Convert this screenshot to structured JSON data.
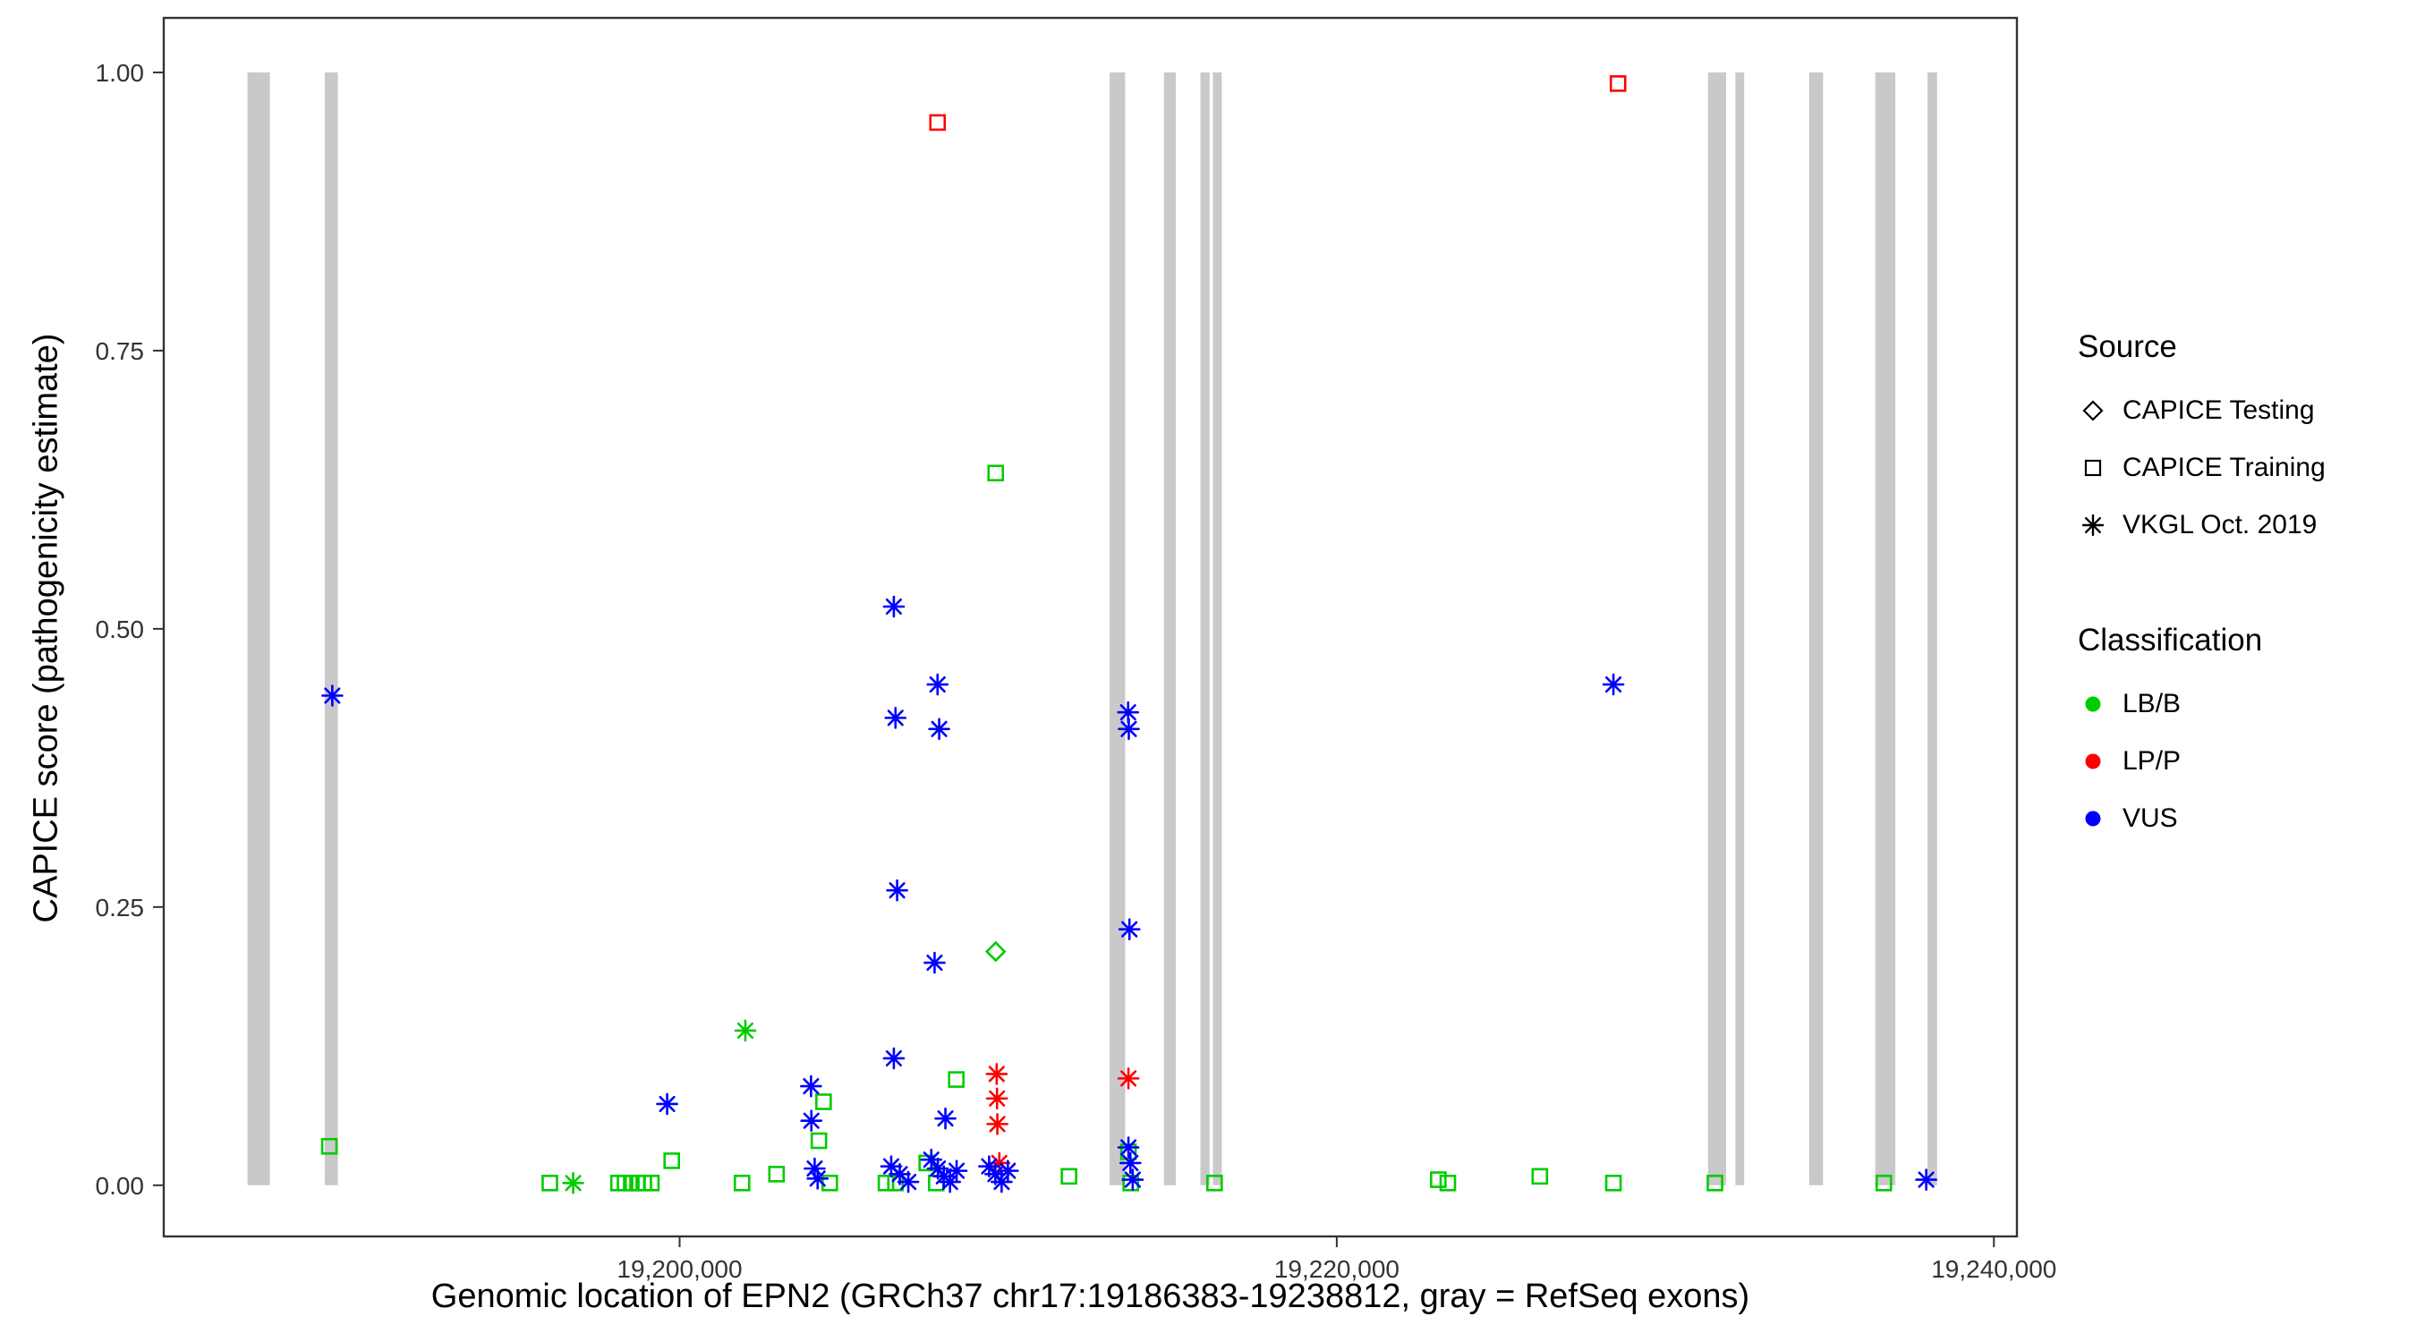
{
  "figure": {
    "xlabel": "Genomic location of EPN2 (GRCh37 chr17:19186383-19238812, gray = RefSeq exons)",
    "ylabel": "CAPICE score (pathogenicity estimate)"
  },
  "legend": {
    "source": {
      "title": "Source",
      "items": [
        {
          "label": "CAPICE Testing",
          "marker": "diamond"
        },
        {
          "label": "CAPICE Training",
          "marker": "square"
        },
        {
          "label": "VKGL Oct. 2019",
          "marker": "asterisk"
        }
      ]
    },
    "classification": {
      "title": "Classification",
      "items": [
        {
          "label": "LB/B",
          "color": "#00CC00"
        },
        {
          "label": "LP/P",
          "color": "#FF0000"
        },
        {
          "label": "VUS",
          "color": "#0000FF"
        }
      ]
    }
  },
  "chart_data": {
    "type": "scatter",
    "title": "",
    "xlabel": "Genomic location of EPN2 (GRCh37 chr17:19186383-19238812, gray = RefSeq exons)",
    "ylabel": "CAPICE score (pathogenicity estimate)",
    "xlim": [
      19184300,
      19240700
    ],
    "ylim": [
      -0.046,
      1.049
    ],
    "grid": false,
    "legend_position": "right",
    "x_ticks": [
      {
        "value": 19200000,
        "label": "19,200,000"
      },
      {
        "value": 19220000,
        "label": "19,220,000"
      },
      {
        "value": 19240000,
        "label": "19,240,000"
      }
    ],
    "y_ticks": [
      {
        "value": 0.0,
        "label": "0.00"
      },
      {
        "value": 0.25,
        "label": "0.25"
      },
      {
        "value": 0.5,
        "label": "0.50"
      },
      {
        "value": 0.75,
        "label": "0.75"
      },
      {
        "value": 1.0,
        "label": "1.00"
      }
    ],
    "exon_color": "#C9C9C9",
    "exons": [
      [
        19186850,
        19187530
      ],
      [
        19189200,
        19189600
      ],
      [
        19213090,
        19213560
      ],
      [
        19214740,
        19215100
      ],
      [
        19215850,
        19216130
      ],
      [
        19216230,
        19216500
      ],
      [
        19231300,
        19231850
      ],
      [
        19232130,
        19232400
      ],
      [
        19234380,
        19234800
      ],
      [
        19236390,
        19237000
      ],
      [
        19237980,
        19238270
      ]
    ],
    "series": [
      {
        "name": "CAPICE Training / LB/B",
        "source": "CAPICE Training",
        "classification": "LB/B",
        "marker": "square",
        "color": "#00CC00",
        "points": [
          [
            19189340,
            0.035
          ],
          [
            19196050,
            0.002
          ],
          [
            19198140,
            0.002
          ],
          [
            19198340,
            0.002
          ],
          [
            19198530,
            0.002
          ],
          [
            19198720,
            0.002
          ],
          [
            19198910,
            0.002
          ],
          [
            19199140,
            0.002
          ],
          [
            19199760,
            0.022
          ],
          [
            19201900,
            0.002
          ],
          [
            19202950,
            0.01
          ],
          [
            19204240,
            0.04
          ],
          [
            19204380,
            0.075
          ],
          [
            19204570,
            0.002
          ],
          [
            19206280,
            0.002
          ],
          [
            19206570,
            0.002
          ],
          [
            19207520,
            0.02
          ],
          [
            19207810,
            0.002
          ],
          [
            19208420,
            0.095
          ],
          [
            19209620,
            0.64
          ],
          [
            19211850,
            0.008
          ],
          [
            19213660,
            0.03
          ],
          [
            19213730,
            0.002
          ],
          [
            19216280,
            0.002
          ],
          [
            19223090,
            0.005
          ],
          [
            19223380,
            0.002
          ],
          [
            19226180,
            0.008
          ],
          [
            19228420,
            0.002
          ],
          [
            19231510,
            0.002
          ],
          [
            19236650,
            0.002
          ]
        ]
      },
      {
        "name": "CAPICE Training / LP/P",
        "source": "CAPICE Training",
        "classification": "LP/P",
        "marker": "square",
        "color": "#FF0000",
        "points": [
          [
            19207850,
            0.955
          ],
          [
            19228560,
            0.99
          ]
        ]
      },
      {
        "name": "CAPICE Testing / LB/B",
        "source": "CAPICE Testing",
        "classification": "LB/B",
        "marker": "diamond",
        "color": "#00CC00",
        "points": [
          [
            19209620,
            0.21
          ]
        ]
      },
      {
        "name": "VKGL Oct. 2019 / LB/B",
        "source": "VKGL Oct. 2019",
        "classification": "LB/B",
        "marker": "asterisk",
        "color": "#00CC00",
        "points": [
          [
            19196760,
            0.002
          ],
          [
            19202000,
            0.139
          ]
        ]
      },
      {
        "name": "VKGL Oct. 2019 / LP/P",
        "source": "VKGL Oct. 2019",
        "classification": "LP/P",
        "marker": "asterisk",
        "color": "#FF0000",
        "points": [
          [
            19209650,
            0.1
          ],
          [
            19209660,
            0.078
          ],
          [
            19209670,
            0.055
          ],
          [
            19209730,
            0.02
          ],
          [
            19213660,
            0.096
          ]
        ]
      },
      {
        "name": "VKGL Oct. 2019 / VUS",
        "source": "VKGL Oct. 2019",
        "classification": "VUS",
        "marker": "asterisk",
        "color": "#0000FF",
        "points": [
          [
            19189430,
            0.44
          ],
          [
            19199620,
            0.073
          ],
          [
            19204000,
            0.089
          ],
          [
            19204010,
            0.058
          ],
          [
            19204110,
            0.015
          ],
          [
            19204200,
            0.006
          ],
          [
            19206440,
            0.017
          ],
          [
            19206520,
            0.52
          ],
          [
            19206520,
            0.114
          ],
          [
            19206570,
            0.42
          ],
          [
            19206620,
            0.265
          ],
          [
            19206700,
            0.01
          ],
          [
            19206960,
            0.003
          ],
          [
            19207660,
            0.023
          ],
          [
            19207760,
            0.2
          ],
          [
            19207850,
            0.45
          ],
          [
            19207860,
            0.015
          ],
          [
            19207900,
            0.41
          ],
          [
            19208040,
            0.008
          ],
          [
            19208090,
            0.06
          ],
          [
            19208230,
            0.003
          ],
          [
            19208430,
            0.013
          ],
          [
            19209420,
            0.017
          ],
          [
            19209610,
            0.01
          ],
          [
            19209800,
            0.003
          ],
          [
            19209990,
            0.013
          ],
          [
            19213650,
            0.425
          ],
          [
            19213670,
            0.41
          ],
          [
            19213690,
            0.23
          ],
          [
            19213660,
            0.034
          ],
          [
            19213720,
            0.02
          ],
          [
            19213790,
            0.005
          ],
          [
            19228420,
            0.45
          ],
          [
            19237940,
            0.005
          ]
        ]
      }
    ]
  }
}
